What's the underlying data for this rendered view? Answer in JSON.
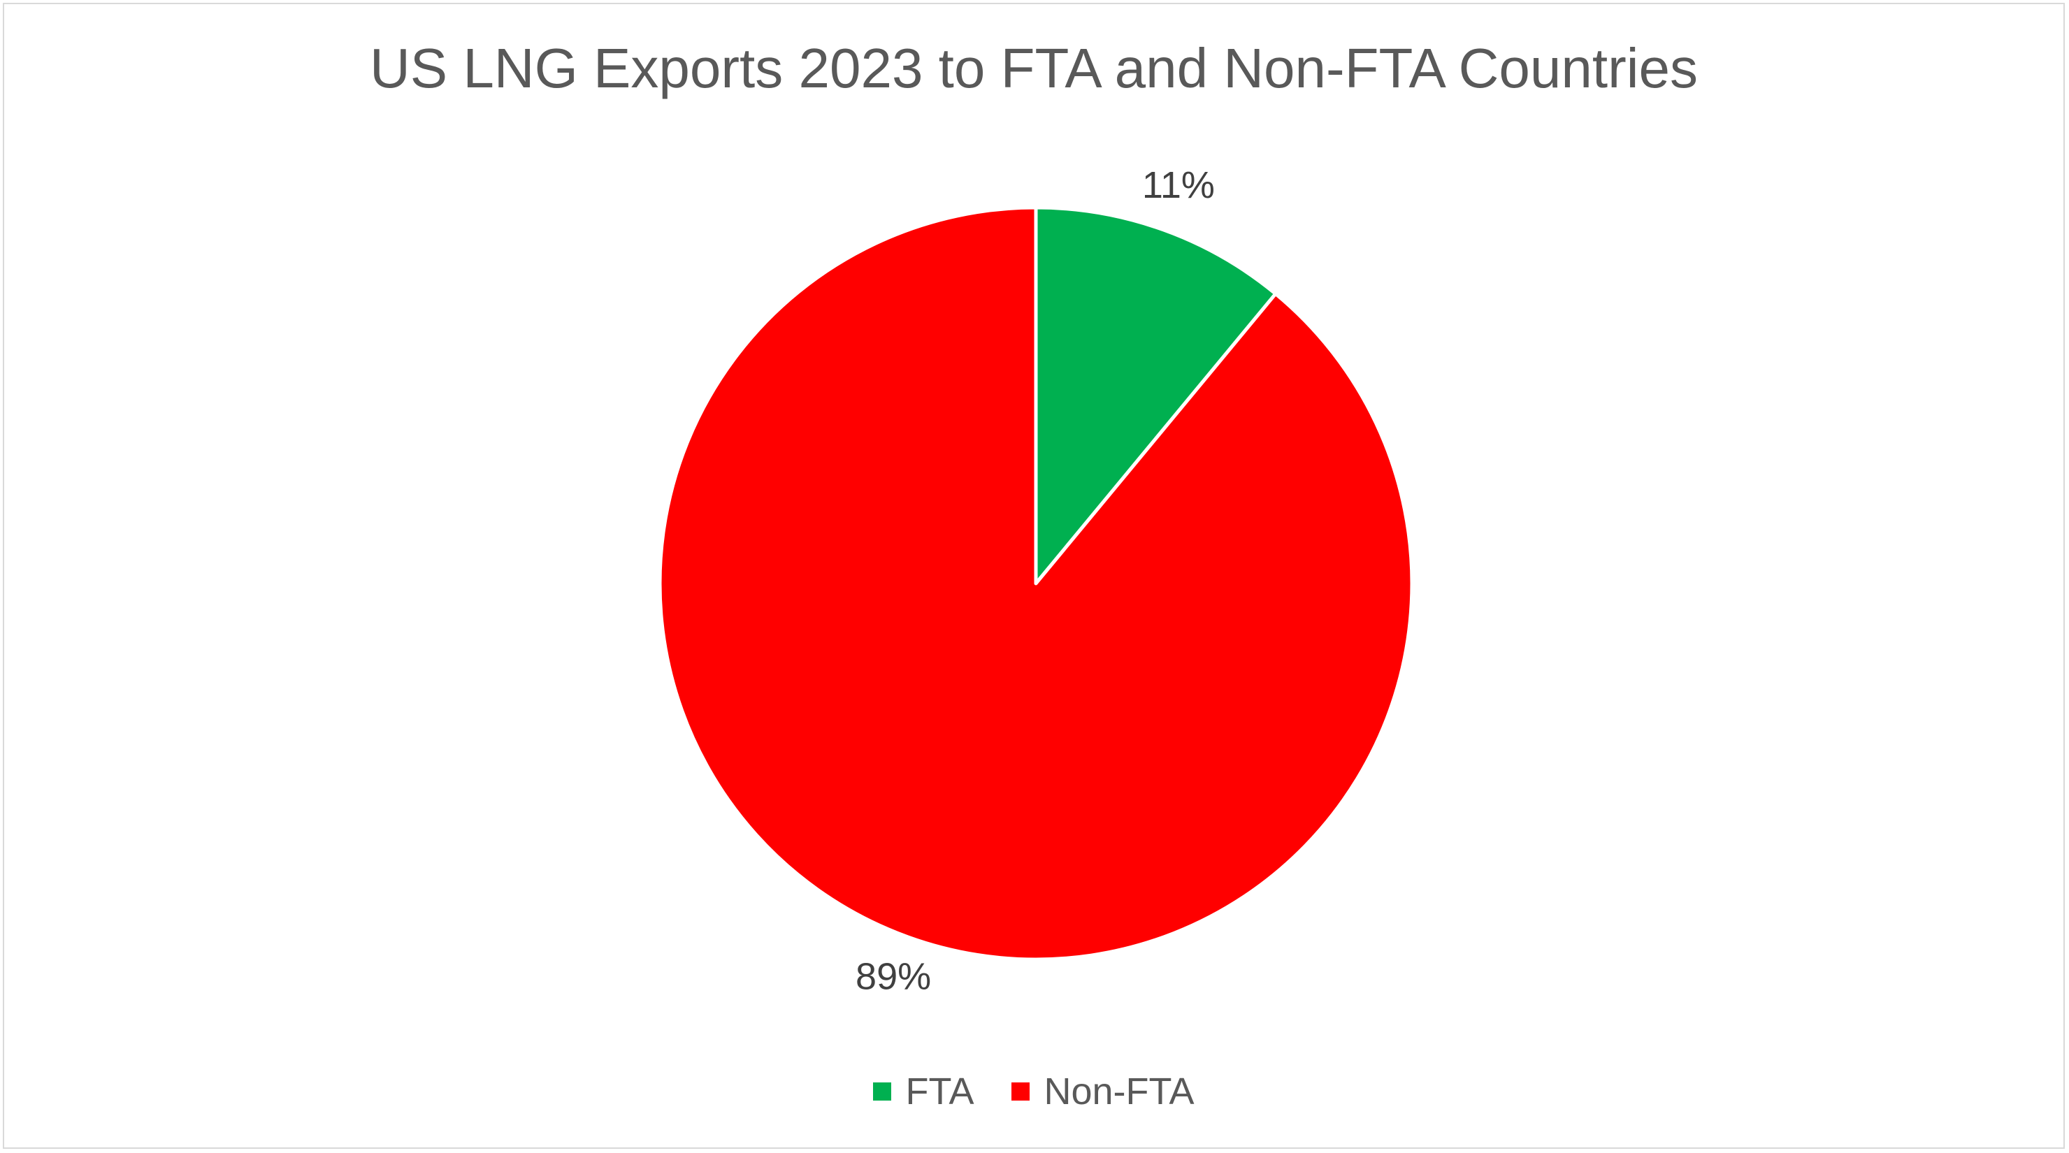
{
  "chart_data": {
    "type": "pie",
    "title": "US LNG Exports 2023 to FTA and Non-FTA Countries",
    "categories": [
      "FTA",
      "Non-FTA"
    ],
    "values": [
      11,
      89
    ],
    "data_labels": [
      "11%",
      "89%"
    ],
    "colors": [
      "#00b050",
      "#ff0000"
    ],
    "legend_position": "bottom"
  }
}
